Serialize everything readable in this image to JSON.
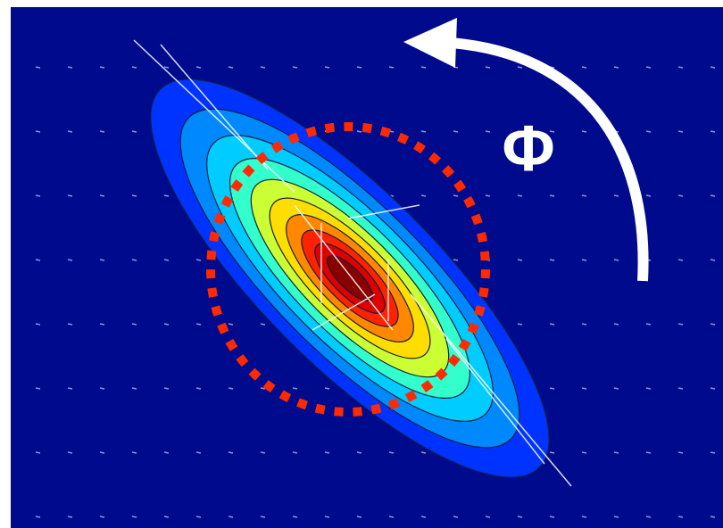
{
  "label": "Φ"
}
